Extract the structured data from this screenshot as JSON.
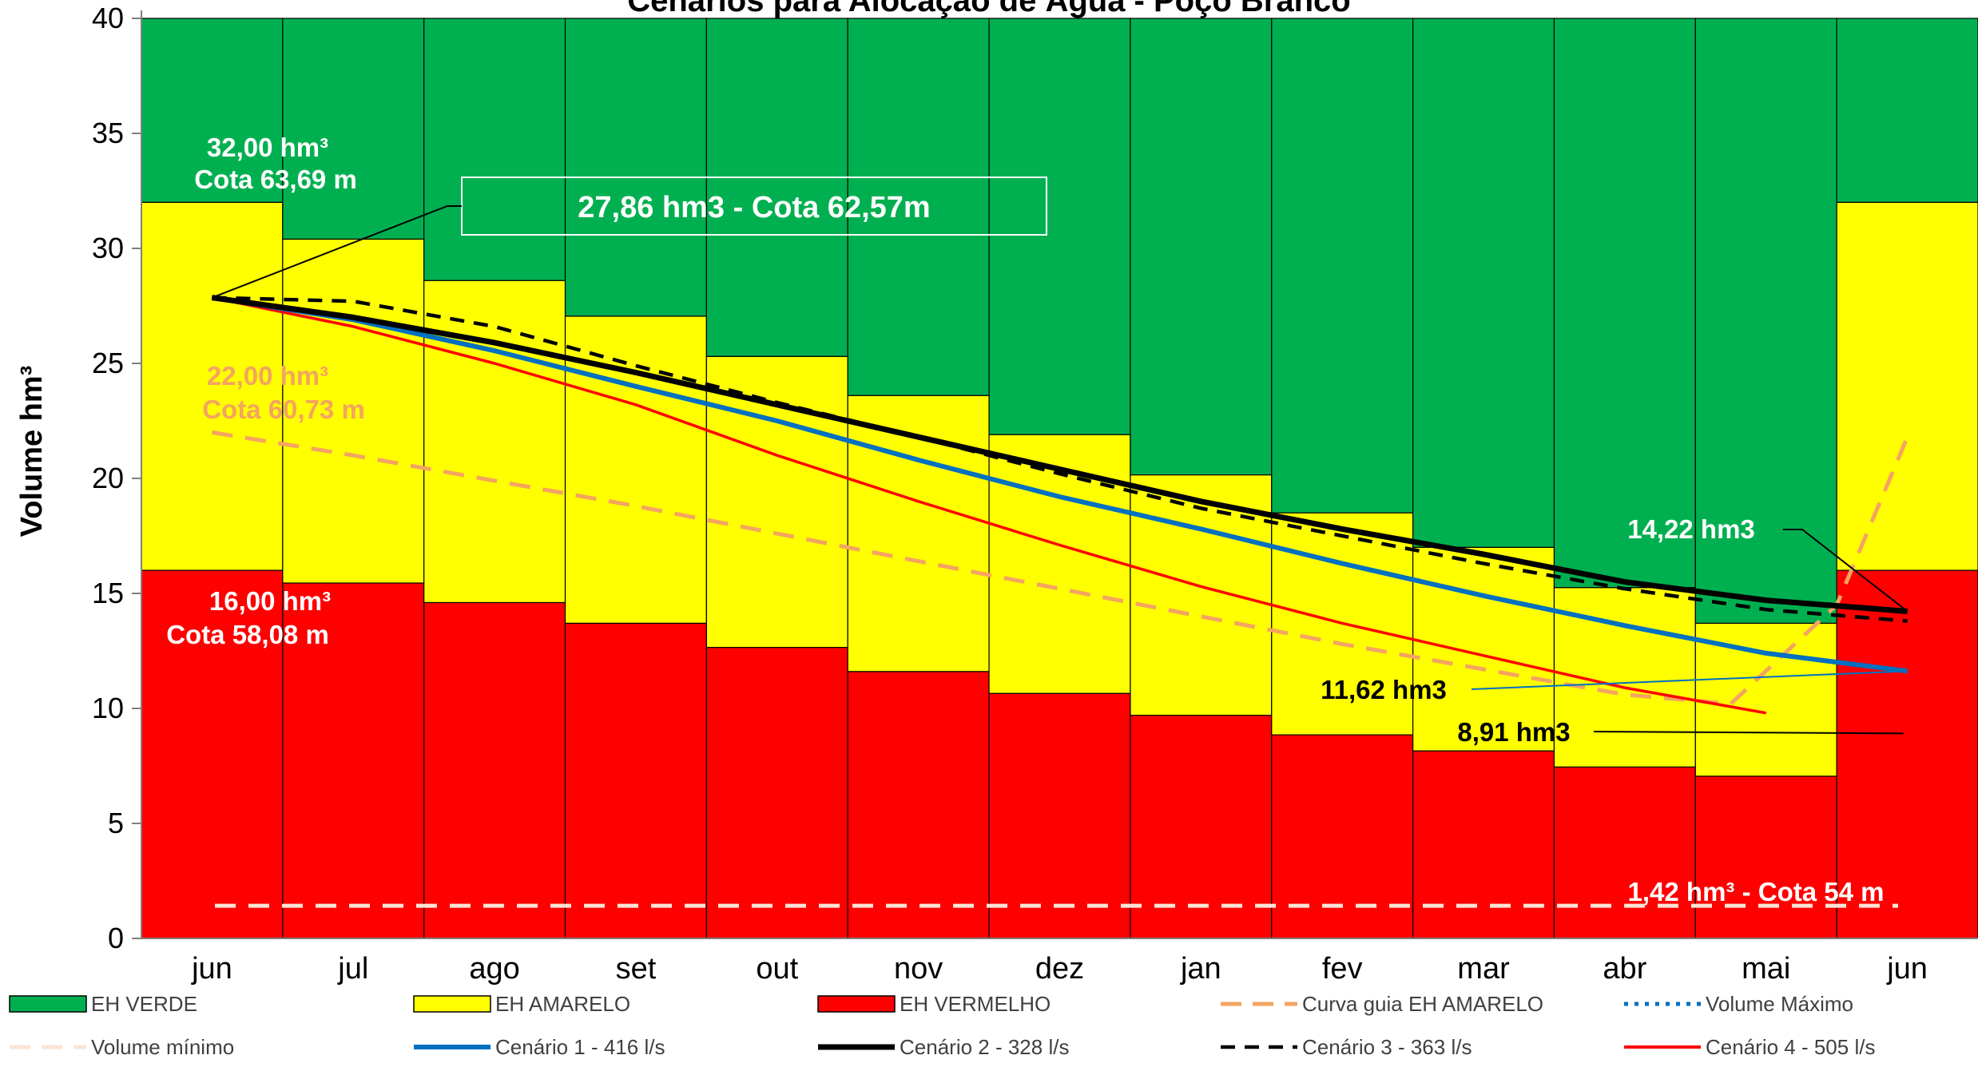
{
  "chart_data": {
    "type": "bar",
    "title": "Cenários para Alocação de Água - Poço Branco",
    "ylabel": "Volume hm³",
    "xlabel": "",
    "ylim": [
      0,
      40
    ],
    "yticks": [
      0,
      5,
      10,
      15,
      20,
      25,
      30,
      35,
      40
    ],
    "grid": false,
    "legend_position": "bottom",
    "categories": [
      "jun",
      "jul",
      "ago",
      "set",
      "out",
      "nov",
      "dez",
      "jan",
      "fev",
      "mar",
      "abr",
      "mai",
      "jun"
    ],
    "zones": [
      {
        "name": "EH VERDE",
        "color": "#00b050",
        "upper": [
          40,
          40,
          40,
          40,
          40,
          40,
          40,
          40,
          40,
          40,
          40,
          40,
          40
        ]
      },
      {
        "name": "EH AMARELO",
        "color": "#ffff00",
        "upper": [
          32.0,
          30.4,
          28.6,
          27.05,
          25.3,
          23.6,
          21.9,
          20.15,
          18.5,
          17.0,
          15.25,
          13.7,
          32.0
        ]
      },
      {
        "name": "EH VERMELHO",
        "color": "#ff0000",
        "upper": [
          16.0,
          15.45,
          14.6,
          13.7,
          12.65,
          11.6,
          10.65,
          9.7,
          8.85,
          8.15,
          7.45,
          7.05,
          16.0
        ]
      }
    ],
    "series": [
      {
        "name": "Curva guia EH AMARELO",
        "color": "#f4a460",
        "style": "dash",
        "x": [
          0,
          1,
          2,
          3,
          4,
          5,
          6,
          7,
          8,
          9,
          10,
          10.75,
          11.5,
          12
        ],
        "values": [
          22.0,
          21.0,
          19.9,
          18.8,
          17.6,
          16.4,
          15.2,
          14.0,
          12.8,
          11.7,
          10.6,
          10.2,
          14.5,
          21.8
        ]
      },
      {
        "name": "Volume Máximo",
        "color": "#0070c0",
        "style": "dot",
        "x": [],
        "values": []
      },
      {
        "name": "Volume mínimo",
        "color": "#fce4d6",
        "style": "dash",
        "x": [
          0,
          12
        ],
        "values": [
          1.42,
          1.42
        ]
      },
      {
        "name": "Cenário 1 - 416 l/s",
        "color": "#0070c0",
        "style": "solid",
        "x": [
          0,
          1,
          2,
          3,
          4,
          5,
          6,
          7,
          8,
          9,
          10,
          11,
          12
        ],
        "values": [
          27.86,
          26.9,
          25.55,
          24.0,
          22.5,
          20.8,
          19.2,
          17.8,
          16.3,
          14.9,
          13.6,
          12.4,
          11.62
        ]
      },
      {
        "name": "Cenário 2 - 328 l/s",
        "color": "#000000",
        "style": "solid",
        "x": [
          0,
          1,
          2,
          3,
          4,
          5,
          6,
          7,
          8,
          9,
          10,
          11,
          12
        ],
        "values": [
          27.86,
          27.0,
          25.9,
          24.6,
          23.2,
          21.8,
          20.4,
          19.0,
          17.8,
          16.7,
          15.5,
          14.7,
          14.22
        ]
      },
      {
        "name": "Cenário 3 - 363 l/s",
        "color": "#000000",
        "style": "dash",
        "x": [
          0,
          1,
          2,
          3,
          4,
          5,
          6,
          7,
          8,
          9,
          10,
          11,
          12
        ],
        "values": [
          27.86,
          27.7,
          26.6,
          24.9,
          23.3,
          21.8,
          20.2,
          18.7,
          17.5,
          16.3,
          15.2,
          14.3,
          13.8
        ]
      },
      {
        "name": "Cenário 4 - 505 l/s",
        "color": "#ff0000",
        "style": "solid",
        "x": [
          0,
          1,
          2,
          3,
          4,
          5,
          6,
          7,
          8,
          9,
          10,
          11
        ],
        "values": [
          27.86,
          26.6,
          25.0,
          23.2,
          21.0,
          19.0,
          17.1,
          15.3,
          13.7,
          12.3,
          10.9,
          9.8
        ]
      }
    ],
    "annotations": [
      {
        "text": "32,00 hm³",
        "style": "white"
      },
      {
        "text": "Cota 63,69 m",
        "style": "white"
      },
      {
        "text": "27,86 hm3 - Cota 62,57m",
        "style": "white-boxed"
      },
      {
        "text": "22,00 hm³",
        "style": "orange"
      },
      {
        "text": "Cota 60,73 m",
        "style": "orange"
      },
      {
        "text": "16,00 hm³",
        "style": "white"
      },
      {
        "text": "Cota 58,08 m",
        "style": "white"
      },
      {
        "text": "14,22 hm3",
        "style": "white"
      },
      {
        "text": "11,62 hm3",
        "style": "black"
      },
      {
        "text": "8,91 hm3",
        "style": "black"
      },
      {
        "text": "1,42 hm³ - Cota 54 m",
        "style": "white"
      }
    ],
    "legend": [
      "EH VERDE",
      "EH AMARELO",
      "EH VERMELHO",
      "Curva guia EH AMARELO",
      "Volume Máximo",
      "Volume mínimo",
      "Cenário 1 - 416 l/s",
      "Cenário 2 - 328 l/s",
      "Cenário 3 - 363 l/s",
      "Cenário 4 - 505 l/s"
    ]
  }
}
